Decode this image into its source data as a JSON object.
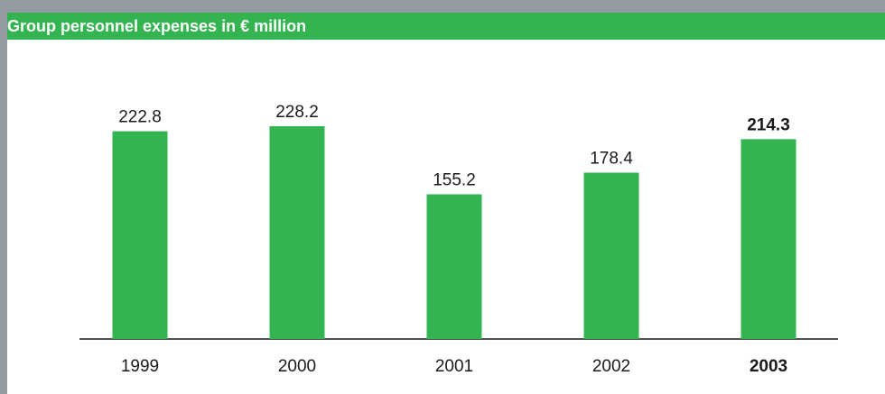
{
  "chart_data": {
    "type": "bar",
    "title": "Group personnel expenses in € million",
    "categories": [
      "1999",
      "2000",
      "2001",
      "2002",
      "2003"
    ],
    "values": [
      222.8,
      228.2,
      155.2,
      178.4,
      214.3
    ],
    "value_labels": [
      "222.8",
      "228.2",
      "155.2",
      "178.4",
      "214.3"
    ],
    "highlight_index": 4,
    "xlabel": "",
    "ylabel": "",
    "ylim": [
      0,
      228.2
    ],
    "grid": false,
    "legend": "none",
    "bar_color": "#34b351",
    "header_color": "#34b351",
    "frame_color": "#949ca1"
  }
}
